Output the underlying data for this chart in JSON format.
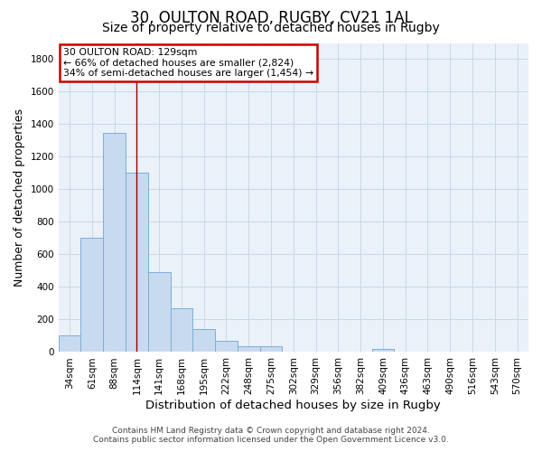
{
  "title_line1": "30, OULTON ROAD, RUGBY, CV21 1AL",
  "title_line2": "Size of property relative to detached houses in Rugby",
  "xlabel": "Distribution of detached houses by size in Rugby",
  "ylabel": "Number of detached properties",
  "bar_labels": [
    "34sqm",
    "61sqm",
    "88sqm",
    "114sqm",
    "141sqm",
    "168sqm",
    "195sqm",
    "222sqm",
    "248sqm",
    "275sqm",
    "302sqm",
    "329sqm",
    "356sqm",
    "382sqm",
    "409sqm",
    "436sqm",
    "463sqm",
    "490sqm",
    "516sqm",
    "543sqm",
    "570sqm"
  ],
  "bar_values": [
    100,
    700,
    1345,
    1100,
    490,
    270,
    140,
    70,
    35,
    35,
    0,
    0,
    0,
    0,
    20,
    0,
    0,
    0,
    0,
    0,
    0
  ],
  "bar_color": "#c8daf0",
  "bar_edge_color": "#7bafd4",
  "ylim": [
    0,
    1900
  ],
  "yticks": [
    0,
    200,
    400,
    600,
    800,
    1000,
    1200,
    1400,
    1600,
    1800
  ],
  "property_bin_index": 3,
  "annotation_line1": "30 OULTON ROAD: 129sqm",
  "annotation_line2": "← 66% of detached houses are smaller (2,824)",
  "annotation_line3": "34% of semi-detached houses are larger (1,454) →",
  "vline_color": "#990000",
  "annotation_box_edgecolor": "#cc0000",
  "footer_line1": "Contains HM Land Registry data © Crown copyright and database right 2024.",
  "footer_line2": "Contains public sector information licensed under the Open Government Licence v3.0.",
  "background_color": "#ffffff",
  "grid_color": "#c8d8e8",
  "title_fontsize": 12,
  "subtitle_fontsize": 10,
  "tick_fontsize": 7.5,
  "ylabel_fontsize": 9,
  "xlabel_fontsize": 9.5,
  "footer_fontsize": 6.5,
  "annot_fontsize": 7.8
}
